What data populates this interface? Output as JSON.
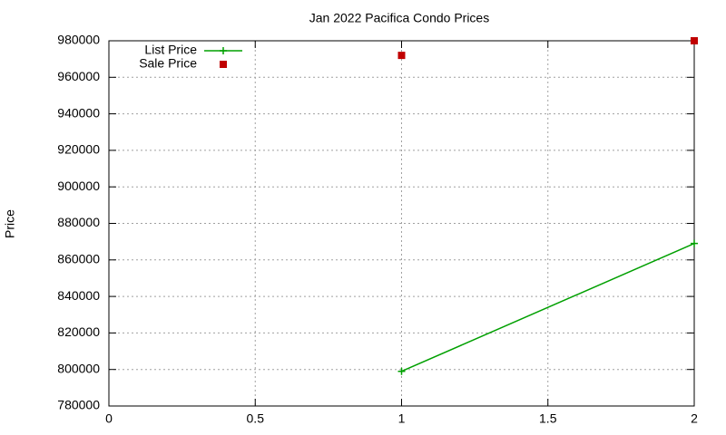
{
  "chart_data": {
    "type": "line",
    "title": "Jan 2022 Pacifica Condo Prices",
    "ylabel": "Price",
    "x": [
      1,
      2
    ],
    "series": [
      {
        "name": "List Price",
        "color": "#00a000",
        "style": "linespoints",
        "values": [
          799000,
          869000
        ]
      },
      {
        "name": "Sale Price",
        "color": "#c00000",
        "style": "points",
        "values": [
          972000,
          980000
        ]
      }
    ],
    "xlim": [
      0,
      2
    ],
    "xticks": [
      0,
      0.5,
      1,
      1.5,
      2
    ],
    "ylim": [
      780000,
      980000
    ],
    "yticks": [
      780000,
      800000,
      820000,
      840000,
      860000,
      880000,
      900000,
      920000,
      940000,
      960000,
      980000
    ],
    "grid": true,
    "legend": "top-left"
  }
}
